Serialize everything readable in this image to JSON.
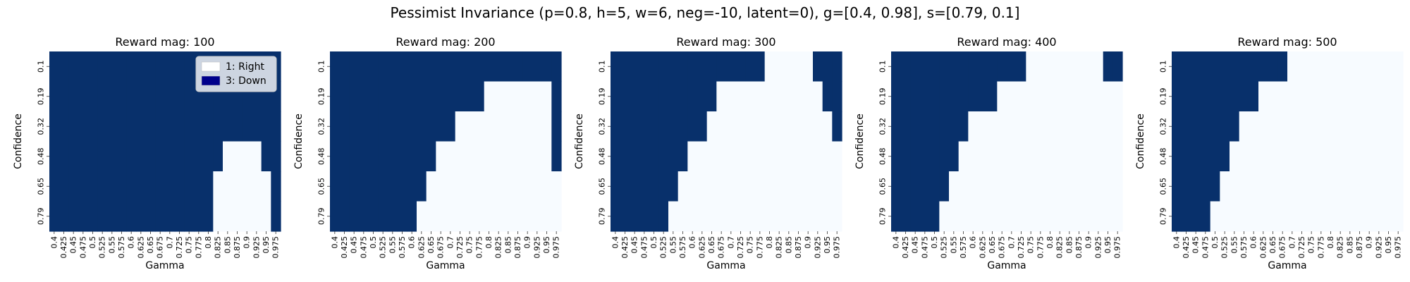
{
  "figure": {
    "suptitle": "Pessimist Invariance (p=0.8, h=5, w=6, neg=-10, latent=0), g=[0.4, 0.98], s=[0.79, 0.1]"
  },
  "legend": {
    "items": [
      {
        "label": "1: Right",
        "color": "#ffffff"
      },
      {
        "label": "3: Down",
        "color": "#00008b"
      }
    ]
  },
  "colors": {
    "right_cell": "#f7fbff",
    "down_cell": "#08306b"
  },
  "chart_data": [
    {
      "type": "heatmap",
      "title": "Reward mag: 100",
      "xlabel": "Gamma",
      "ylabel": "Confidence",
      "x": [
        "0.4",
        "0.425",
        "0.45",
        "0.475",
        "0.5",
        "0.525",
        "0.55",
        "0.575",
        "0.6",
        "0.625",
        "0.65",
        "0.675",
        "0.7",
        "0.725",
        "0.75",
        "0.775",
        "0.8",
        "0.825",
        "0.85",
        "0.875",
        "0.9",
        "0.925",
        "0.95",
        "0.975"
      ],
      "y": [
        "0.1",
        "0.19",
        "0.32",
        "0.48",
        "0.65",
        "0.79"
      ],
      "values": [
        [
          3,
          3,
          3,
          3,
          3,
          3,
          3,
          3,
          3,
          3,
          3,
          3,
          3,
          3,
          3,
          3,
          3,
          3,
          3,
          3,
          3,
          3,
          3,
          3
        ],
        [
          3,
          3,
          3,
          3,
          3,
          3,
          3,
          3,
          3,
          3,
          3,
          3,
          3,
          3,
          3,
          3,
          3,
          3,
          3,
          3,
          3,
          3,
          3,
          3
        ],
        [
          3,
          3,
          3,
          3,
          3,
          3,
          3,
          3,
          3,
          3,
          3,
          3,
          3,
          3,
          3,
          3,
          3,
          3,
          3,
          3,
          3,
          3,
          3,
          3
        ],
        [
          3,
          3,
          3,
          3,
          3,
          3,
          3,
          3,
          3,
          3,
          3,
          3,
          3,
          3,
          3,
          3,
          3,
          3,
          1,
          1,
          1,
          1,
          3,
          3
        ],
        [
          3,
          3,
          3,
          3,
          3,
          3,
          3,
          3,
          3,
          3,
          3,
          3,
          3,
          3,
          3,
          3,
          3,
          1,
          1,
          1,
          1,
          1,
          1,
          3
        ],
        [
          3,
          3,
          3,
          3,
          3,
          3,
          3,
          3,
          3,
          3,
          3,
          3,
          3,
          3,
          3,
          3,
          3,
          1,
          1,
          1,
          1,
          1,
          1,
          3
        ]
      ]
    },
    {
      "type": "heatmap",
      "title": "Reward mag: 200",
      "xlabel": "Gamma",
      "ylabel": "Confidence",
      "x": [
        "0.4",
        "0.425",
        "0.45",
        "0.475",
        "0.5",
        "0.525",
        "0.55",
        "0.575",
        "0.6",
        "0.625",
        "0.65",
        "0.675",
        "0.7",
        "0.725",
        "0.75",
        "0.775",
        "0.8",
        "0.825",
        "0.85",
        "0.875",
        "0.9",
        "0.925",
        "0.95",
        "0.975"
      ],
      "y": [
        "0.1",
        "0.19",
        "0.32",
        "0.48",
        "0.65",
        "0.79"
      ],
      "values": [
        [
          3,
          3,
          3,
          3,
          3,
          3,
          3,
          3,
          3,
          3,
          3,
          3,
          3,
          3,
          3,
          3,
          3,
          3,
          3,
          3,
          3,
          3,
          3,
          3
        ],
        [
          3,
          3,
          3,
          3,
          3,
          3,
          3,
          3,
          3,
          3,
          3,
          3,
          3,
          3,
          3,
          3,
          1,
          1,
          1,
          1,
          1,
          1,
          1,
          3
        ],
        [
          3,
          3,
          3,
          3,
          3,
          3,
          3,
          3,
          3,
          3,
          3,
          3,
          3,
          1,
          1,
          1,
          1,
          1,
          1,
          1,
          1,
          1,
          1,
          3
        ],
        [
          3,
          3,
          3,
          3,
          3,
          3,
          3,
          3,
          3,
          3,
          3,
          1,
          1,
          1,
          1,
          1,
          1,
          1,
          1,
          1,
          1,
          1,
          1,
          3
        ],
        [
          3,
          3,
          3,
          3,
          3,
          3,
          3,
          3,
          3,
          3,
          1,
          1,
          1,
          1,
          1,
          1,
          1,
          1,
          1,
          1,
          1,
          1,
          1,
          1
        ],
        [
          3,
          3,
          3,
          3,
          3,
          3,
          3,
          3,
          3,
          1,
          1,
          1,
          1,
          1,
          1,
          1,
          1,
          1,
          1,
          1,
          1,
          1,
          1,
          1
        ]
      ]
    },
    {
      "type": "heatmap",
      "title": "Reward mag: 300",
      "xlabel": "Gamma",
      "ylabel": "Confidence",
      "x": [
        "0.4",
        "0.425",
        "0.45",
        "0.475",
        "0.5",
        "0.525",
        "0.55",
        "0.575",
        "0.6",
        "0.625",
        "0.65",
        "0.675",
        "0.7",
        "0.725",
        "0.75",
        "0.775",
        "0.8",
        "0.825",
        "0.85",
        "0.875",
        "0.9",
        "0.925",
        "0.95",
        "0.975"
      ],
      "y": [
        "0.1",
        "0.19",
        "0.32",
        "0.48",
        "0.65",
        "0.79"
      ],
      "values": [
        [
          3,
          3,
          3,
          3,
          3,
          3,
          3,
          3,
          3,
          3,
          3,
          3,
          3,
          3,
          3,
          3,
          1,
          1,
          1,
          1,
          1,
          3,
          3,
          3
        ],
        [
          3,
          3,
          3,
          3,
          3,
          3,
          3,
          3,
          3,
          3,
          3,
          1,
          1,
          1,
          1,
          1,
          1,
          1,
          1,
          1,
          1,
          1,
          3,
          3
        ],
        [
          3,
          3,
          3,
          3,
          3,
          3,
          3,
          3,
          3,
          3,
          1,
          1,
          1,
          1,
          1,
          1,
          1,
          1,
          1,
          1,
          1,
          1,
          1,
          3
        ],
        [
          3,
          3,
          3,
          3,
          3,
          3,
          3,
          3,
          1,
          1,
          1,
          1,
          1,
          1,
          1,
          1,
          1,
          1,
          1,
          1,
          1,
          1,
          1,
          1
        ],
        [
          3,
          3,
          3,
          3,
          3,
          3,
          3,
          1,
          1,
          1,
          1,
          1,
          1,
          1,
          1,
          1,
          1,
          1,
          1,
          1,
          1,
          1,
          1,
          1
        ],
        [
          3,
          3,
          3,
          3,
          3,
          3,
          1,
          1,
          1,
          1,
          1,
          1,
          1,
          1,
          1,
          1,
          1,
          1,
          1,
          1,
          1,
          1,
          1,
          1
        ]
      ]
    },
    {
      "type": "heatmap",
      "title": "Reward mag: 400",
      "xlabel": "Gamma",
      "ylabel": "Confidence",
      "x": [
        "0.4",
        "0.425",
        "0.45",
        "0.475",
        "0.5",
        "0.525",
        "0.55",
        "0.575",
        "0.6",
        "0.625",
        "0.65",
        "0.675",
        "0.7",
        "0.725",
        "0.75",
        "0.775",
        "0.8",
        "0.825",
        "0.85",
        "0.875",
        "0.9",
        "0.925",
        "0.95",
        "0.975"
      ],
      "y": [
        "0.1",
        "0.19",
        "0.32",
        "0.48",
        "0.65",
        "0.79"
      ],
      "values": [
        [
          3,
          3,
          3,
          3,
          3,
          3,
          3,
          3,
          3,
          3,
          3,
          3,
          3,
          3,
          1,
          1,
          1,
          1,
          1,
          1,
          1,
          1,
          3,
          3
        ],
        [
          3,
          3,
          3,
          3,
          3,
          3,
          3,
          3,
          3,
          3,
          3,
          1,
          1,
          1,
          1,
          1,
          1,
          1,
          1,
          1,
          1,
          1,
          1,
          1
        ],
        [
          3,
          3,
          3,
          3,
          3,
          3,
          3,
          3,
          1,
          1,
          1,
          1,
          1,
          1,
          1,
          1,
          1,
          1,
          1,
          1,
          1,
          1,
          1,
          1
        ],
        [
          3,
          3,
          3,
          3,
          3,
          3,
          3,
          1,
          1,
          1,
          1,
          1,
          1,
          1,
          1,
          1,
          1,
          1,
          1,
          1,
          1,
          1,
          1,
          1
        ],
        [
          3,
          3,
          3,
          3,
          3,
          3,
          1,
          1,
          1,
          1,
          1,
          1,
          1,
          1,
          1,
          1,
          1,
          1,
          1,
          1,
          1,
          1,
          1,
          1
        ],
        [
          3,
          3,
          3,
          3,
          3,
          1,
          1,
          1,
          1,
          1,
          1,
          1,
          1,
          1,
          1,
          1,
          1,
          1,
          1,
          1,
          1,
          1,
          1,
          1
        ]
      ]
    },
    {
      "type": "heatmap",
      "title": "Reward mag: 500",
      "xlabel": "Gamma",
      "ylabel": "Confidence",
      "x": [
        "0.4",
        "0.425",
        "0.45",
        "0.475",
        "0.5",
        "0.525",
        "0.55",
        "0.575",
        "0.6",
        "0.625",
        "0.65",
        "0.675",
        "0.7",
        "0.725",
        "0.75",
        "0.775",
        "0.8",
        "0.825",
        "0.85",
        "0.875",
        "0.9",
        "0.925",
        "0.95",
        "0.975"
      ],
      "y": [
        "0.1",
        "0.19",
        "0.32",
        "0.48",
        "0.65",
        "0.79"
      ],
      "values": [
        [
          3,
          3,
          3,
          3,
          3,
          3,
          3,
          3,
          3,
          3,
          3,
          3,
          1,
          1,
          1,
          1,
          1,
          1,
          1,
          1,
          1,
          1,
          1,
          1
        ],
        [
          3,
          3,
          3,
          3,
          3,
          3,
          3,
          3,
          3,
          1,
          1,
          1,
          1,
          1,
          1,
          1,
          1,
          1,
          1,
          1,
          1,
          1,
          1,
          1
        ],
        [
          3,
          3,
          3,
          3,
          3,
          3,
          3,
          1,
          1,
          1,
          1,
          1,
          1,
          1,
          1,
          1,
          1,
          1,
          1,
          1,
          1,
          1,
          1,
          1
        ],
        [
          3,
          3,
          3,
          3,
          3,
          3,
          1,
          1,
          1,
          1,
          1,
          1,
          1,
          1,
          1,
          1,
          1,
          1,
          1,
          1,
          1,
          1,
          1,
          1
        ],
        [
          3,
          3,
          3,
          3,
          3,
          1,
          1,
          1,
          1,
          1,
          1,
          1,
          1,
          1,
          1,
          1,
          1,
          1,
          1,
          1,
          1,
          1,
          1,
          1
        ],
        [
          3,
          3,
          3,
          3,
          1,
          1,
          1,
          1,
          1,
          1,
          1,
          1,
          1,
          1,
          1,
          1,
          1,
          1,
          1,
          1,
          1,
          1,
          1,
          1
        ]
      ]
    }
  ]
}
